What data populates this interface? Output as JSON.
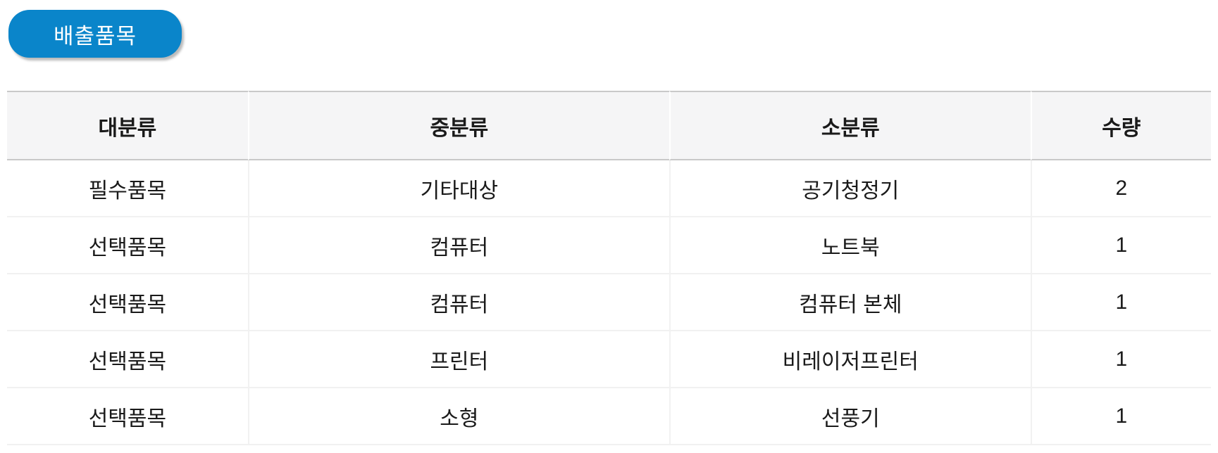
{
  "badge": {
    "label": "배출품목",
    "background_color": "#0a85ca",
    "text_color": "#ffffff"
  },
  "table": {
    "columns": [
      {
        "label": "대분류"
      },
      {
        "label": "중분류"
      },
      {
        "label": "소분류"
      },
      {
        "label": "수량"
      }
    ],
    "rows": [
      [
        "필수품목",
        "기타대상",
        "공기청정기",
        "2"
      ],
      [
        "선택품목",
        "컴퓨터",
        "노트북",
        "1"
      ],
      [
        "선택품목",
        "컴퓨터",
        "컴퓨터 본체",
        "1"
      ],
      [
        "선택품목",
        "프린터",
        "비레이저프린터",
        "1"
      ],
      [
        "선택품목",
        "소형",
        "선풍기",
        "1"
      ]
    ],
    "colors": {
      "header_background": "#f5f5f6",
      "header_border": "#c9c9c9",
      "row_border": "#f1f1f1",
      "text": "#1a1a1a"
    }
  }
}
